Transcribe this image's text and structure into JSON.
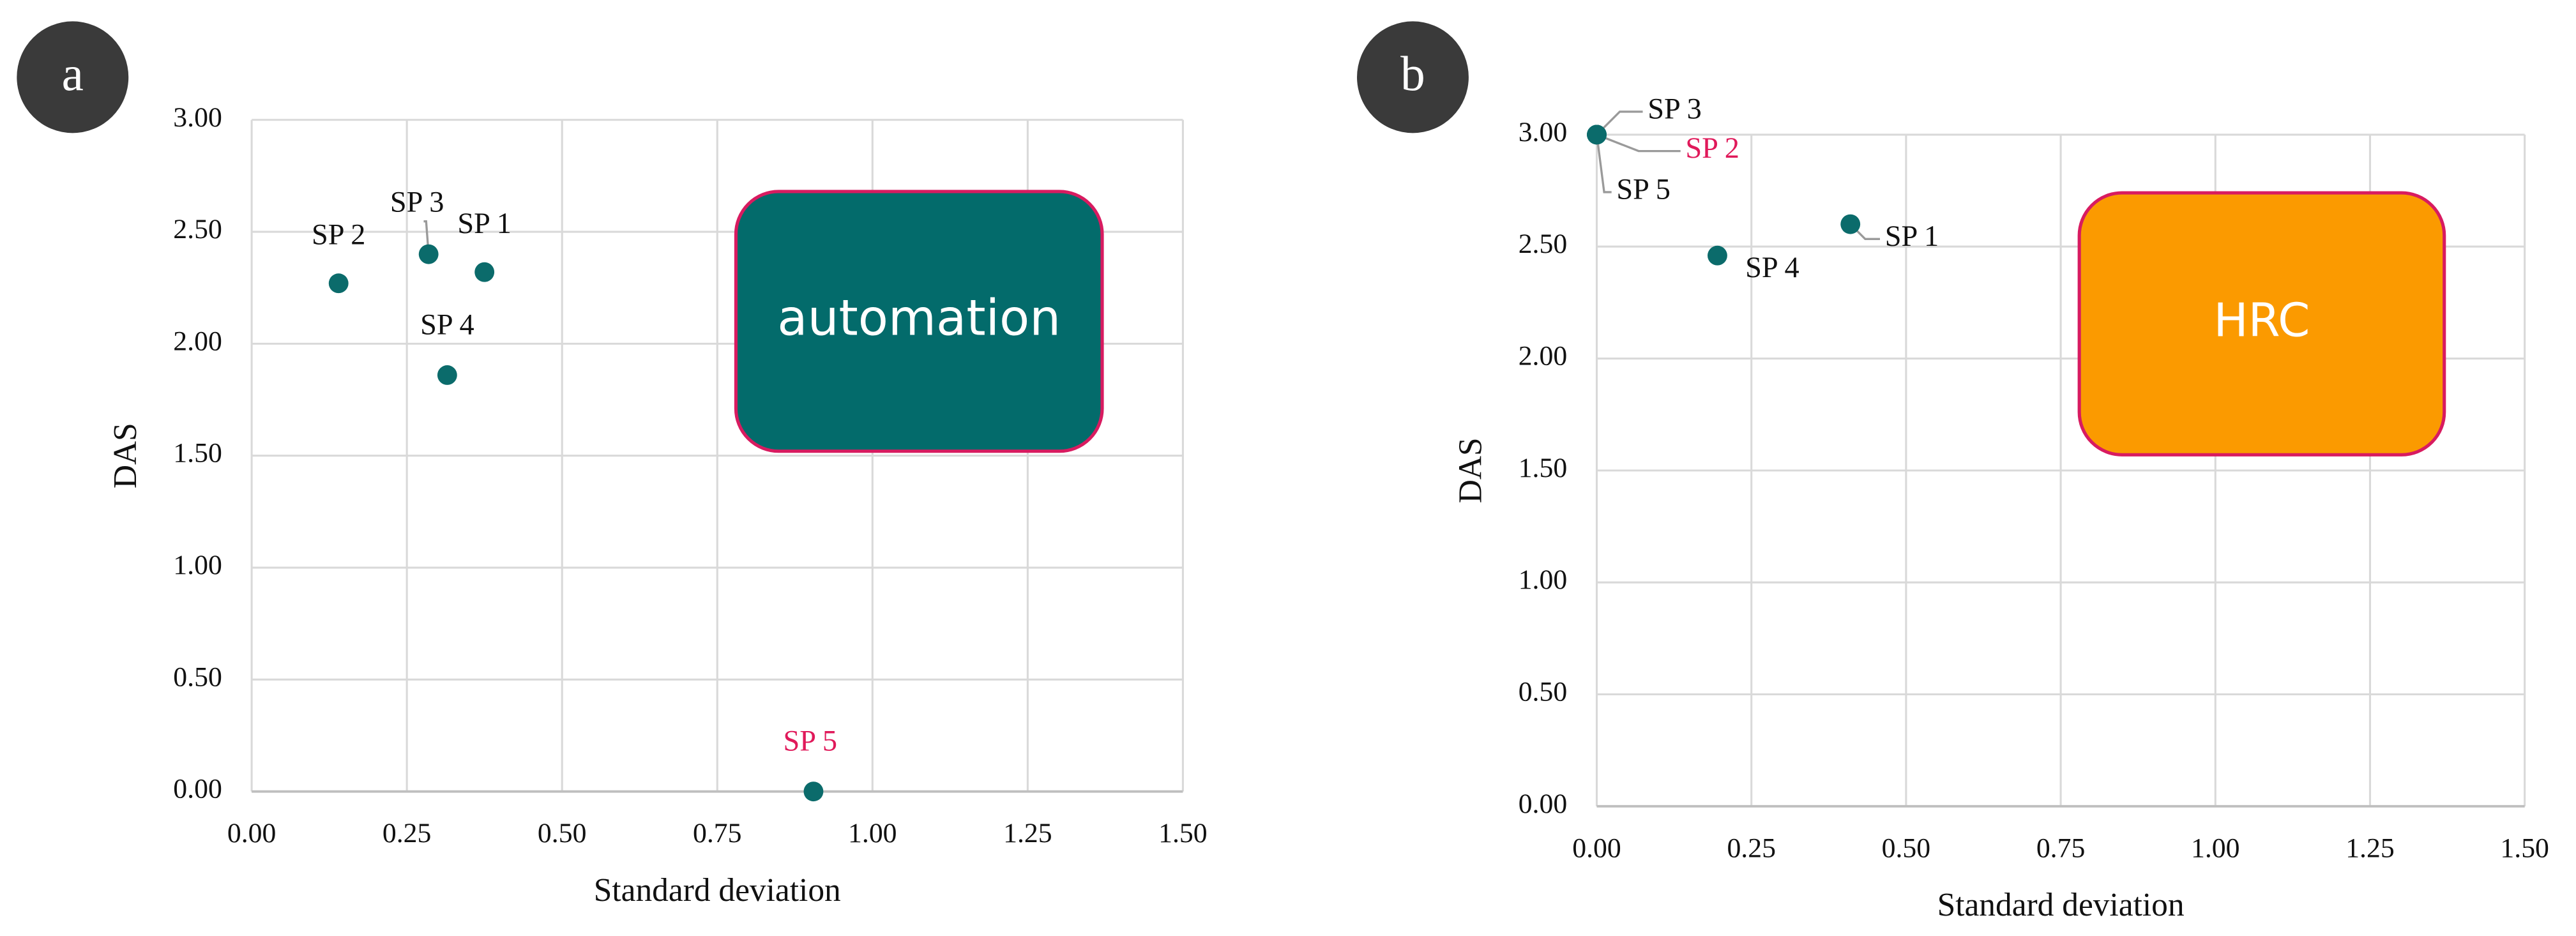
{
  "chart_data": [
    {
      "type": "scatter",
      "panel_label": "a",
      "x_label": "Standard deviation",
      "y_label": "DAS",
      "point_labels": [
        "SP 1",
        "SP 2",
        "SP 3",
        "SP 4",
        "SP 5"
      ],
      "x": [
        0.375,
        0.14,
        0.285,
        0.315,
        0.905
      ],
      "values": [
        2.32,
        2.27,
        2.4,
        1.86,
        0.0
      ],
      "color": "#0b6b6b",
      "label_colors": [
        "#111111",
        "#111111",
        "#111111",
        "#111111",
        "#e0195a"
      ],
      "annotation": {
        "text": "automation",
        "color": "#036b6b",
        "border": "#d81b60"
      },
      "xlim": [
        0,
        1.5
      ],
      "ylim": [
        0,
        3
      ],
      "xticks": [
        {
          "value": 0,
          "label": "0.00"
        },
        {
          "value": 0.25,
          "label": "0.25"
        },
        {
          "value": 0.5,
          "label": "0.50"
        },
        {
          "value": 0.75,
          "label": "0.75"
        },
        {
          "value": 1,
          "label": "1.00"
        },
        {
          "value": 1.25,
          "label": "1.25"
        },
        {
          "value": 1.5,
          "label": "1.50"
        }
      ],
      "yticks": [
        {
          "value": 0,
          "label": "0.00"
        },
        {
          "value": 0.5,
          "label": "0.50"
        },
        {
          "value": 1,
          "label": "1.00"
        },
        {
          "value": 1.5,
          "label": "1.50"
        },
        {
          "value": 2,
          "label": "2.00"
        },
        {
          "value": 2.5,
          "label": "2.50"
        },
        {
          "value": 3,
          "label": "3.00"
        }
      ],
      "grid": true
    },
    {
      "type": "scatter",
      "panel_label": "b",
      "x_label": "Standard deviation",
      "y_label": "DAS",
      "point_labels": [
        "SP 1",
        "SP 2",
        "SP 3",
        "SP 4",
        "SP 5"
      ],
      "x": [
        0.41,
        0.0,
        0.0,
        0.195,
        0.0
      ],
      "values": [
        2.6,
        3.0,
        3.0,
        2.46,
        3.0
      ],
      "color": "#0b6b6b",
      "label_colors": [
        "#111111",
        "#e0195a",
        "#111111",
        "#111111",
        "#111111"
      ],
      "annotation": {
        "text": "HRC",
        "color": "#fb9a00",
        "border": "#d81b60"
      },
      "xlim": [
        0,
        1.5
      ],
      "ylim": [
        0,
        3
      ],
      "xticks": [
        {
          "value": 0,
          "label": "0.00"
        },
        {
          "value": 0.25,
          "label": "0.25"
        },
        {
          "value": 0.5,
          "label": "0.50"
        },
        {
          "value": 0.75,
          "label": "0.75"
        },
        {
          "value": 1,
          "label": "1.00"
        },
        {
          "value": 1.25,
          "label": "1.25"
        },
        {
          "value": 1.5,
          "label": "1.50"
        }
      ],
      "yticks": [
        {
          "value": 0,
          "label": "0.00"
        },
        {
          "value": 0.5,
          "label": "0.50"
        },
        {
          "value": 1,
          "label": "1.00"
        },
        {
          "value": 1.5,
          "label": "1.50"
        },
        {
          "value": 2,
          "label": "2.00"
        },
        {
          "value": 2.5,
          "label": "2.50"
        },
        {
          "value": 3,
          "label": "3.00"
        }
      ],
      "grid": true
    }
  ]
}
